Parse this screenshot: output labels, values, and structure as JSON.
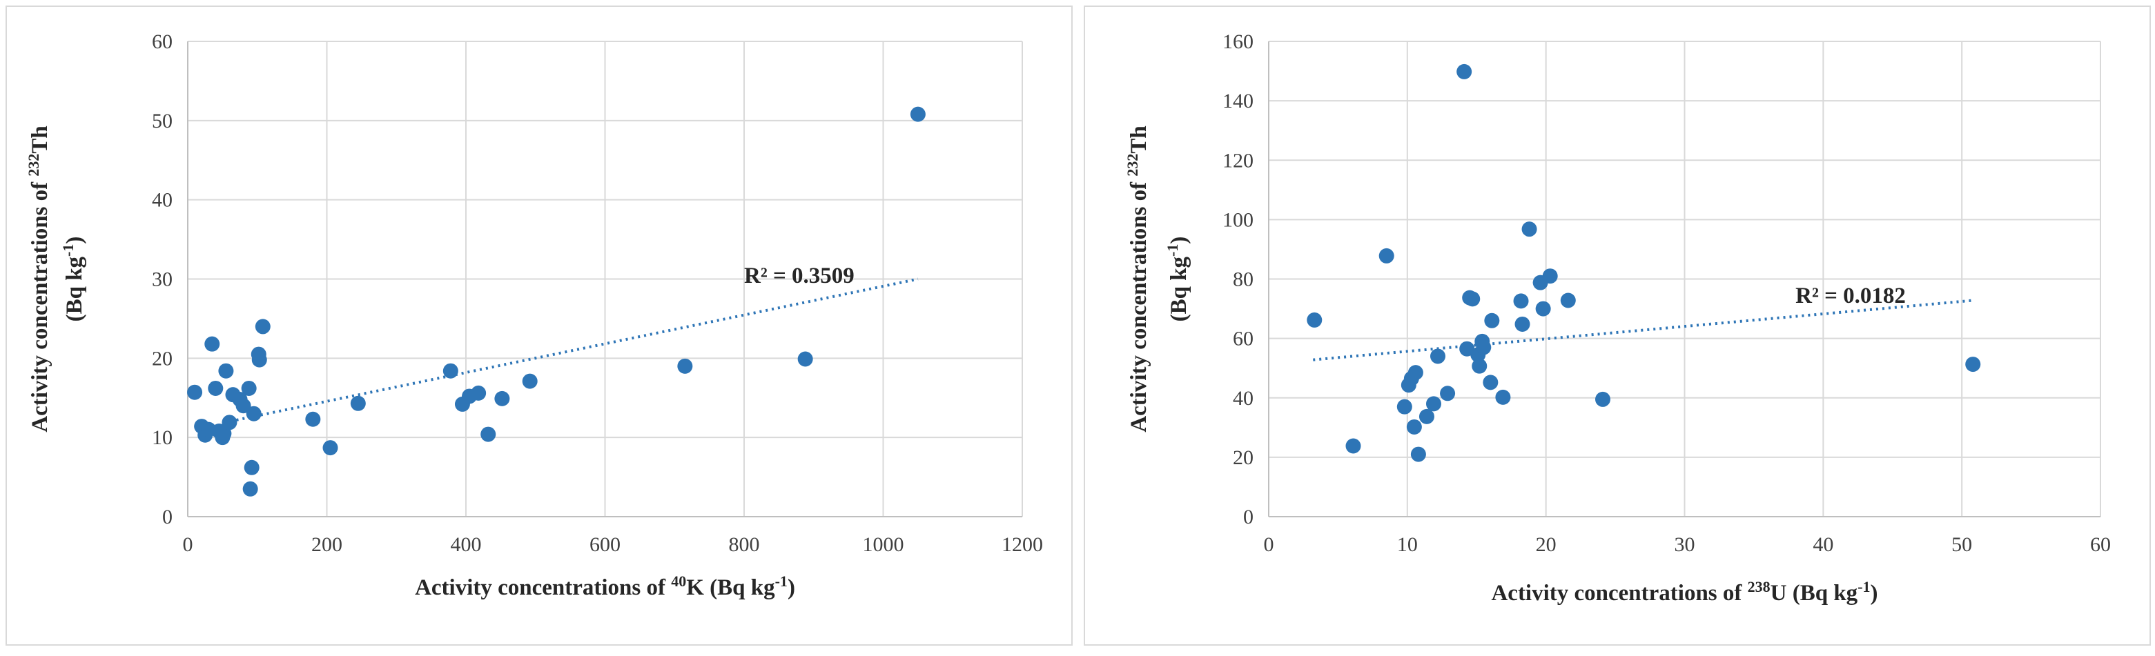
{
  "chart_data": [
    {
      "type": "scatter",
      "xlabel_parts": [
        "Activity  concentrations  of ",
        "40",
        "K (Bq kg",
        "-1",
        ")"
      ],
      "ylabel_line1_parts": [
        "Activity  concentrations  of ",
        "232",
        "Th"
      ],
      "ylabel_line2_parts": [
        "(Bq kg",
        "-1",
        ")"
      ],
      "xlim": [
        0,
        1200
      ],
      "ylim": [
        0,
        60
      ],
      "xticks": [
        0,
        200,
        400,
        600,
        800,
        1000,
        1200
      ],
      "yticks": [
        0,
        10,
        20,
        30,
        40,
        50,
        60
      ],
      "grid": "both",
      "trendline": {
        "type": "linear",
        "x": [
          70,
          1050
        ],
        "y": [
          12.2,
          30.0
        ],
        "label": "R² = 0.3509",
        "label_pos": [
          800,
          29.5
        ]
      },
      "points": [
        [
          10,
          15.7
        ],
        [
          20,
          11.4
        ],
        [
          25,
          10.3
        ],
        [
          30,
          11.0
        ],
        [
          35,
          21.8
        ],
        [
          40,
          16.2
        ],
        [
          45,
          10.8
        ],
        [
          50,
          10.0
        ],
        [
          52,
          10.5
        ],
        [
          55,
          18.4
        ],
        [
          60,
          11.9
        ],
        [
          65,
          15.4
        ],
        [
          75,
          14.8
        ],
        [
          80,
          14.0
        ],
        [
          88,
          16.2
        ],
        [
          90,
          3.5
        ],
        [
          92,
          6.2
        ],
        [
          95,
          13.0
        ],
        [
          102,
          20.5
        ],
        [
          103,
          19.8
        ],
        [
          108,
          24.0
        ],
        [
          180,
          12.3
        ],
        [
          205,
          8.7
        ],
        [
          245,
          14.3
        ],
        [
          378,
          18.4
        ],
        [
          395,
          14.2
        ],
        [
          405,
          15.2
        ],
        [
          418,
          15.6
        ],
        [
          432,
          10.4
        ],
        [
          452,
          14.9
        ],
        [
          492,
          17.1
        ],
        [
          715,
          19.0
        ],
        [
          888,
          19.9
        ],
        [
          1050,
          50.8
        ]
      ]
    },
    {
      "type": "scatter",
      "xlabel_parts": [
        "Activity  concentrations  of ",
        "238",
        "U (Bq  kg",
        "-1",
        ")"
      ],
      "ylabel_line1_parts": [
        "Activity  concentrations  of ",
        "232",
        "Th"
      ],
      "ylabel_line2_parts": [
        "(Bq kg",
        "-1",
        ")"
      ],
      "xlim": [
        0,
        60
      ],
      "ylim": [
        0,
        160
      ],
      "xticks": [
        0,
        10,
        20,
        30,
        40,
        50,
        60
      ],
      "yticks": [
        0,
        20,
        40,
        60,
        80,
        100,
        120,
        140,
        160
      ],
      "grid": "both",
      "trendline": {
        "type": "linear",
        "x": [
          3.2,
          50.8
        ],
        "y": [
          52.8,
          72.8
        ],
        "label": "R² = 0.0182",
        "label_pos": [
          38,
          72
        ]
      },
      "points": [
        [
          3.3,
          66.2
        ],
        [
          6.1,
          23.8
        ],
        [
          8.5,
          87.8
        ],
        [
          9.8,
          37.0
        ],
        [
          10.1,
          44.3
        ],
        [
          10.3,
          46.5
        ],
        [
          10.5,
          30.2
        ],
        [
          10.6,
          48.5
        ],
        [
          10.8,
          21.0
        ],
        [
          11.4,
          33.7
        ],
        [
          11.9,
          38.0
        ],
        [
          12.2,
          54.0
        ],
        [
          12.9,
          41.5
        ],
        [
          14.1,
          149.8
        ],
        [
          14.3,
          56.5
        ],
        [
          14.5,
          73.7
        ],
        [
          14.7,
          73.3
        ],
        [
          15.1,
          54.5
        ],
        [
          15.2,
          50.7
        ],
        [
          15.4,
          59.0
        ],
        [
          15.5,
          57.0
        ],
        [
          16.0,
          45.2
        ],
        [
          16.1,
          66.0
        ],
        [
          16.9,
          40.2
        ],
        [
          18.2,
          72.6
        ],
        [
          18.3,
          64.8
        ],
        [
          18.8,
          96.8
        ],
        [
          19.6,
          78.8
        ],
        [
          19.8,
          70.0
        ],
        [
          20.3,
          81.0
        ],
        [
          21.6,
          72.8
        ],
        [
          24.1,
          39.5
        ],
        [
          50.8,
          51.3
        ]
      ]
    }
  ]
}
